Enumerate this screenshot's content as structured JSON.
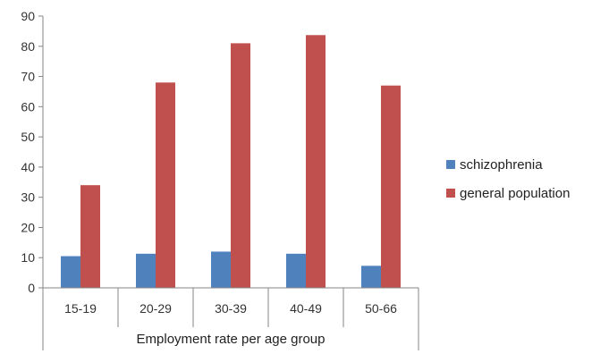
{
  "chart_data": {
    "type": "bar",
    "categories": [
      "15-19",
      "20-29",
      "30-39",
      "40-49",
      "50-66"
    ],
    "series": [
      {
        "name": "schizophrenia",
        "values": [
          10.5,
          11.3,
          12,
          11.3,
          7.3
        ],
        "color": "#4f81bd"
      },
      {
        "name": "general population",
        "values": [
          34,
          68,
          81,
          83.7,
          67
        ],
        "color": "#c0504d"
      }
    ],
    "title": "",
    "xlabel": "Employment rate per age group",
    "ylabel": "",
    "ylim": [
      0,
      90
    ],
    "yticks": [
      0,
      10,
      20,
      30,
      40,
      50,
      60,
      70,
      80,
      90
    ],
    "grid": false,
    "legend_position": "right"
  }
}
